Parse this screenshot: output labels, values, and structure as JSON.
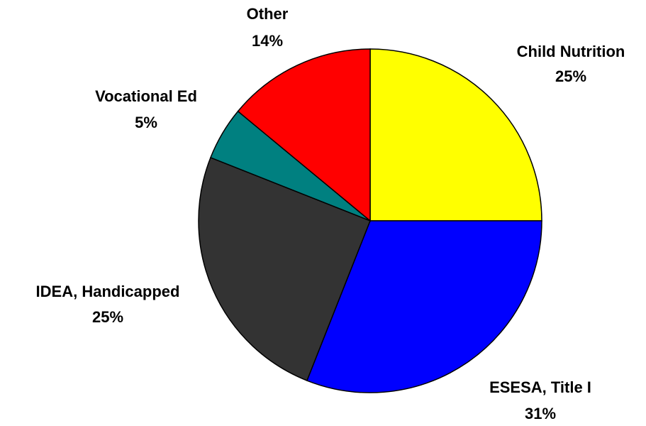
{
  "chart_data": {
    "type": "pie",
    "title": "",
    "slices": [
      {
        "label": "Child Nutrition",
        "value": 25,
        "value_label": "25%",
        "color": "#ffff00"
      },
      {
        "label": "ESESA, Title I",
        "value": 31,
        "value_label": "31%",
        "color": "#0000ff"
      },
      {
        "label": "IDEA, Handicapped",
        "value": 25,
        "value_label": "25%",
        "color": "#333333"
      },
      {
        "label": "Vocational Ed",
        "value": 5,
        "value_label": "5%",
        "color": "#008080"
      },
      {
        "label": "Other",
        "value": 14,
        "value_label": "14%",
        "color": "#ff0000"
      }
    ],
    "start": "12 o'clock",
    "direction": "clockwise",
    "legend": "none"
  }
}
